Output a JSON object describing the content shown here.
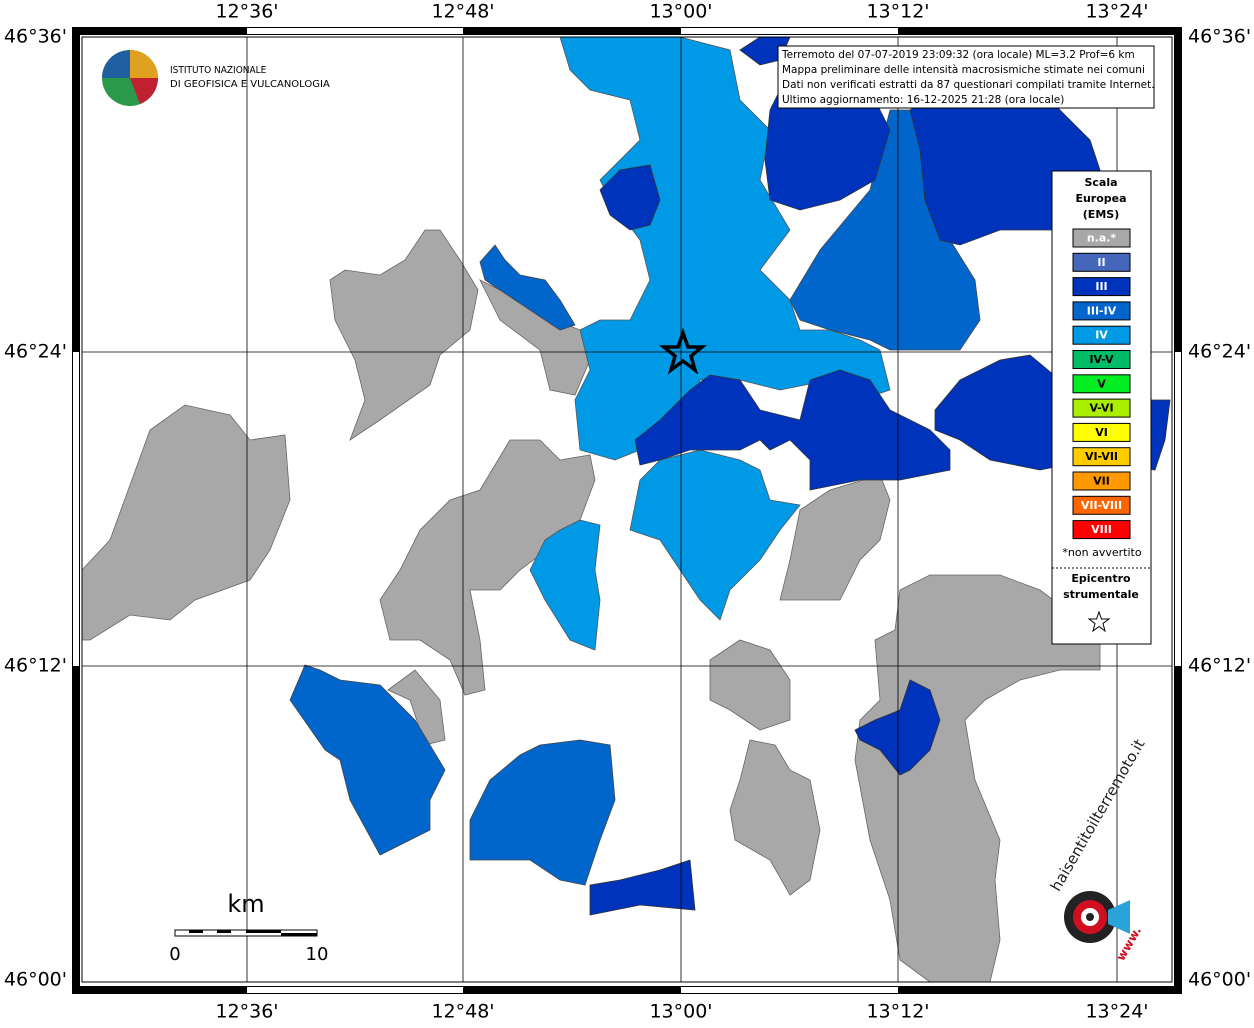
{
  "header": {
    "institute_lines": [
      "ISTITUTO NAZIONALE",
      "DI GEOFISICA E VULCANOLOGIA"
    ]
  },
  "info_box": {
    "lines": [
      "Terremoto del 07-07-2019 23:09:32 (ora locale) ML=3.2 Prof=6 km",
      "Mappa preliminare delle intensità macrosismiche stimate nei comuni",
      "Dati non verificati estratti da 87 questionari compilati tramite Internet.",
      "Ultimo aggiornamento: 16-12-2025 21:28 (ora locale)"
    ]
  },
  "axes": {
    "longitude_labels": [
      "12°36'",
      "12°48'",
      "13°00'",
      "13°12'",
      "13°24'"
    ],
    "latitude_labels": [
      "46°36'",
      "46°24'",
      "46°12'",
      "46°00'"
    ]
  },
  "legend": {
    "title_lines": [
      "Scala",
      "Europea",
      "(EMS)"
    ],
    "items": [
      {
        "label": "n.a.*",
        "color": "#a8a8a8"
      },
      {
        "label": "II",
        "color": "#4466bb"
      },
      {
        "label": "III",
        "color": "#0033bb"
      },
      {
        "label": "III-IV",
        "color": "#0066cc"
      },
      {
        "label": "IV",
        "color": "#0099e6"
      },
      {
        "label": "IV-V",
        "color": "#00bb66"
      },
      {
        "label": "V",
        "color": "#00ee22"
      },
      {
        "label": "V-VI",
        "color": "#aaee00"
      },
      {
        "label": "VI",
        "color": "#ffff00"
      },
      {
        "label": "VI-VII",
        "color": "#ffcc00"
      },
      {
        "label": "VII",
        "color": "#ff9900"
      },
      {
        "label": "VII-VIII",
        "color": "#ff6600"
      },
      {
        "label": "VIII",
        "color": "#ff0000"
      }
    ],
    "note": "*non avvertito",
    "epicenter_lines": [
      "Epicentro",
      "strumentale"
    ]
  },
  "scale_bar": {
    "unit": "km",
    "labels": [
      "0",
      "10"
    ]
  },
  "footer_logo": {
    "site": "haisentitoilterremoto.it",
    "prefix": "www."
  }
}
